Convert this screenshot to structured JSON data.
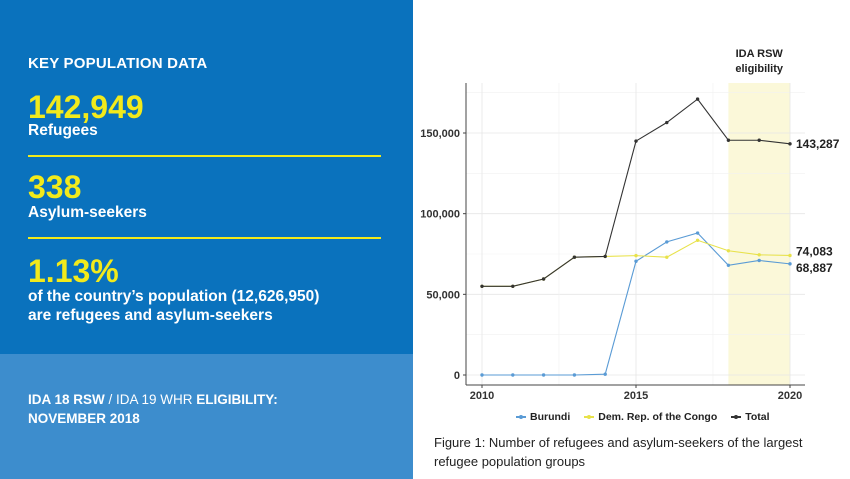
{
  "panel": {
    "title": "KEY POPULATION DATA",
    "stats": [
      {
        "value": "142,949",
        "label": "Refugees"
      },
      {
        "value": "338",
        "label": "Asylum-seekers"
      },
      {
        "value": "1.13%",
        "label_line1": "of the country’s population (12,626,950)",
        "label_line2": "are refugees and asylum-seekers"
      }
    ],
    "eligibility": {
      "part1": "IDA 18 RSW",
      "sep": " / IDA 19 WHR ",
      "part2": "ELIGIBILITY:",
      "part3": "NOVEMBER 2018"
    }
  },
  "colors": {
    "panel_top": "#0a72bd",
    "panel_bottom": "#3d8dcd",
    "accent_yellow": "#f2ea1b",
    "burundi": "#5a9bd5",
    "drc": "#e8e24a",
    "total": "#333333",
    "band": "#fbf8d9"
  },
  "chart_data": {
    "type": "line",
    "x": [
      2010,
      2011,
      2012,
      2013,
      2014,
      2015,
      2016,
      2017,
      2018,
      2019,
      2020
    ],
    "series": [
      {
        "name": "Burundi",
        "values": [
          0,
          0,
          0,
          0,
          500,
          70500,
          82500,
          88000,
          68000,
          71000,
          68887
        ]
      },
      {
        "name": "Dem. Rep. of the Congo",
        "values": [
          55000,
          55000,
          59500,
          73000,
          73500,
          74000,
          73000,
          83500,
          77000,
          74500,
          74083
        ]
      },
      {
        "name": "Total",
        "values": [
          55000,
          55000,
          59500,
          73000,
          73500,
          145000,
          156500,
          171000,
          145500,
          145500,
          143287
        ]
      }
    ],
    "end_labels": [
      "143,287",
      "74,083",
      "68,887"
    ],
    "xticks": [
      2010,
      2015,
      2020
    ],
    "yticks": [
      0,
      50000,
      100000,
      150000
    ],
    "ytick_labels": [
      "0",
      "50,000",
      "100,000",
      "150,000"
    ],
    "xlim": [
      2010,
      2020
    ],
    "ylim": [
      0,
      180000
    ],
    "band": {
      "from": 2018,
      "to": 2020,
      "label_line1": "IDA RSW",
      "label_line2": "eligibility"
    },
    "grid": true,
    "legend_position": "bottom",
    "caption_line1": "Figure 1: Number of refugees and asylum-seekers of the largest",
    "caption_line2": "refugee population groups"
  }
}
